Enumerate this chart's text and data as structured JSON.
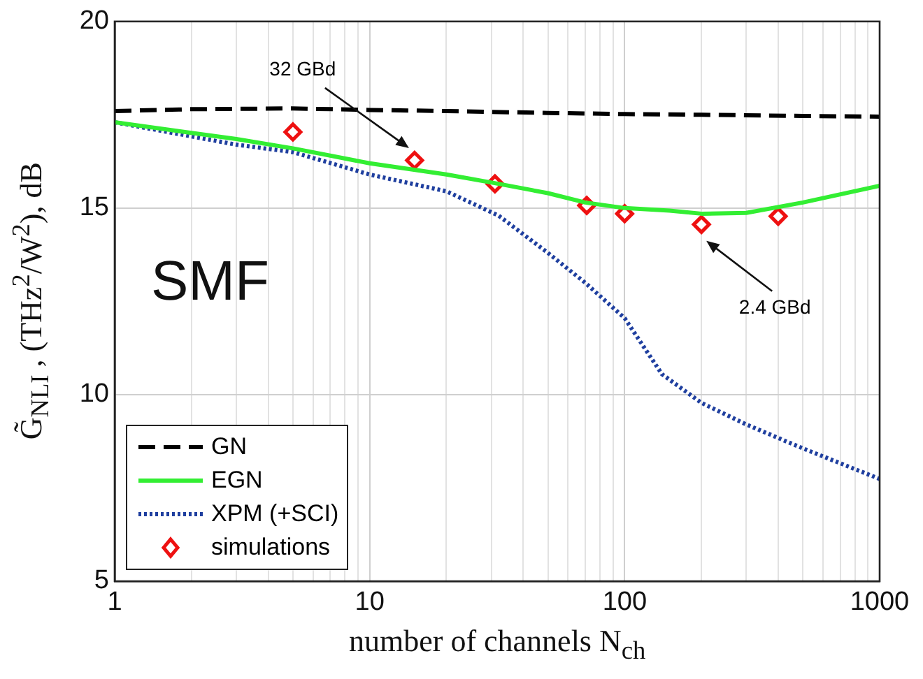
{
  "chart_data": {
    "type": "line",
    "xlabel": "number of channels N$_{ch}$",
    "ylabel": "G̃$_{NLI}$ , (THz$^{2}$/W$^{2}$), dB",
    "log": "x",
    "grid": true,
    "legend": "bottom left",
    "xlim": [
      1,
      1000
    ],
    "ylim": [
      5,
      20
    ],
    "yticks": [
      5,
      10,
      15,
      20
    ],
    "xticks": [
      1,
      {
        "value": 2,
        "label": null
      },
      {
        "value": 3,
        "label": null
      },
      {
        "value": 4,
        "label": null
      },
      {
        "value": 5,
        "label": null
      },
      {
        "value": 6,
        "label": null
      },
      {
        "value": 7,
        "label": null
      },
      {
        "value": 8,
        "label": null
      },
      {
        "value": 9,
        "label": null
      },
      10,
      {
        "value": 20,
        "label": null
      },
      {
        "value": 30,
        "label": null
      },
      {
        "value": 40,
        "label": null
      },
      {
        "value": 50,
        "label": null
      },
      {
        "value": 60,
        "label": null
      },
      {
        "value": 70,
        "label": null
      },
      {
        "value": 80,
        "label": null
      },
      {
        "value": 90,
        "label": null
      },
      100,
      {
        "value": 200,
        "label": null
      },
      {
        "value": 300,
        "label": null
      },
      {
        "value": 400,
        "label": null
      },
      {
        "value": 500,
        "label": null
      },
      {
        "value": 600,
        "label": null
      },
      {
        "value": 700,
        "label": null
      },
      {
        "value": 800,
        "label": null
      },
      {
        "value": 900,
        "label": null
      },
      1000
    ],
    "series": [
      {
        "name": "GN",
        "color": "#000000",
        "line_style": "dashed",
        "marker": "none",
        "x": [
          1,
          2,
          5,
          10,
          20,
          50,
          100,
          200,
          500,
          1000
        ],
        "values": [
          17.6,
          17.65,
          17.67,
          17.63,
          17.6,
          17.55,
          17.52,
          17.5,
          17.47,
          17.45
        ]
      },
      {
        "name": "EGN",
        "color": "#33ee33",
        "line_style": "solid",
        "marker": "none",
        "x": [
          1,
          3,
          5,
          10,
          20,
          32,
          50,
          70,
          100,
          150,
          200,
          300,
          500,
          1000
        ],
        "values": [
          17.3,
          16.85,
          16.6,
          16.2,
          15.9,
          15.65,
          15.4,
          15.15,
          15.0,
          14.93,
          14.85,
          14.87,
          15.15,
          15.6
        ]
      },
      {
        "name": "XPM (+SCI)",
        "color": "#1f3f9f",
        "line_style": "dotted",
        "marker": "none",
        "x": [
          1,
          3,
          5,
          10,
          20,
          32,
          50,
          70,
          100,
          140,
          200,
          300,
          500,
          1000
        ],
        "values": [
          17.3,
          16.7,
          16.5,
          15.9,
          15.45,
          14.8,
          13.8,
          13.0,
          12.05,
          10.55,
          9.78,
          9.2,
          8.56,
          7.74
        ]
      },
      {
        "name": "simulations",
        "type": "scatter",
        "color": "#ee1111",
        "marker": "diamond",
        "x": [
          5,
          15,
          31,
          71,
          100,
          200,
          400
        ],
        "values": [
          17.04,
          16.28,
          15.65,
          15.07,
          14.85,
          14.56,
          14.78
        ]
      }
    ],
    "annotations": [
      "SMF",
      "32 GBd",
      "2.4 GBd"
    ]
  }
}
